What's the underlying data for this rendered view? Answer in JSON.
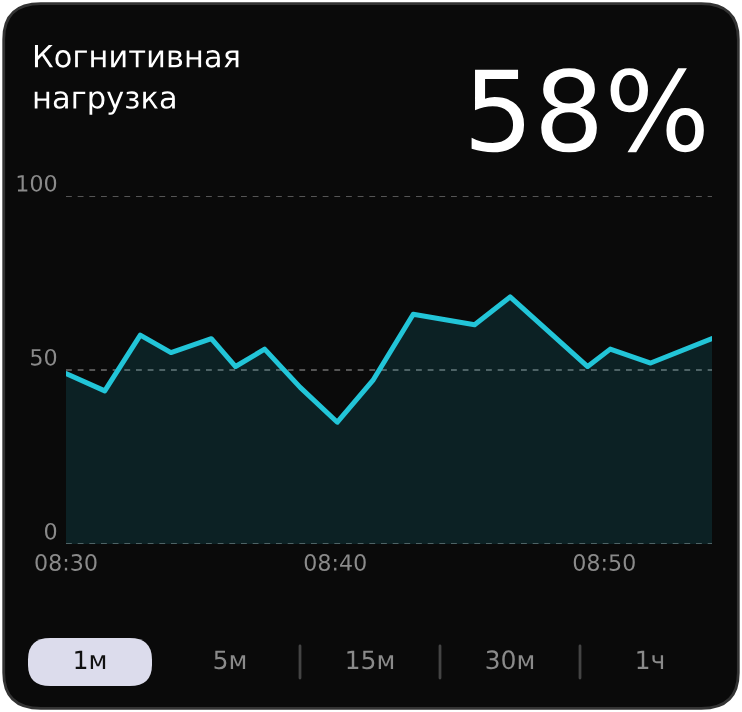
{
  "chart_data": {
    "type": "area",
    "title": "Когнитивная нагрузка",
    "annotations": [
      "58%",
      "1м",
      "5м",
      "15м",
      "30м",
      "1ч"
    ],
    "x": [
      8.5,
      8.524,
      8.546,
      8.565,
      8.59,
      8.605,
      8.623,
      8.645,
      8.668,
      8.69,
      8.715,
      8.753,
      8.775,
      8.823,
      8.837,
      8.862,
      8.9
    ],
    "series": [
      {
        "color": "#22c5d8",
        "values": [
          49,
          44,
          60,
          55,
          59,
          51,
          56,
          45,
          35,
          47,
          66,
          63,
          71,
          51,
          56,
          52,
          59
        ]
      }
    ],
    "xlim": [
      8.5,
      8.9
    ],
    "xticks": [
      {
        "value": 8.5,
        "label": "08:30"
      },
      {
        "value": 8.6667,
        "label": "08:40"
      },
      {
        "value": 8.8333,
        "label": "08:50"
      }
    ],
    "ylim": [
      0,
      100
    ],
    "yticks": [
      0,
      50,
      100
    ],
    "grid": "y",
    "marker": "none",
    "line_style": "solid",
    "legend": false
  }
}
